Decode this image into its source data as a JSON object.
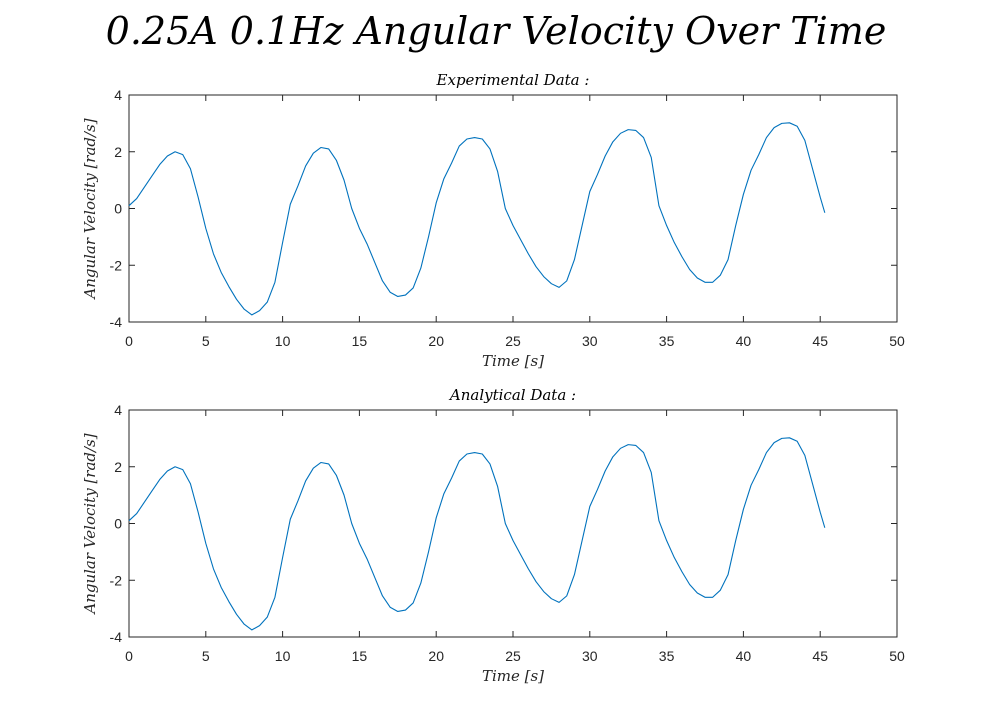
{
  "figure": {
    "title": "0.25A 0.1Hz Angular Velocity Over Time"
  },
  "colors": {
    "line": "#0072BD",
    "axes": "#262626",
    "background": "#ffffff"
  },
  "chart_data": [
    {
      "type": "line",
      "title": "Experimental Data :",
      "xlabel": "Time [s]",
      "ylabel": "Angular Velocity [rad/s]",
      "xlim": [
        0,
        50
      ],
      "ylim": [
        -4,
        4
      ],
      "xticks": [
        0,
        5,
        10,
        15,
        20,
        25,
        30,
        35,
        40,
        45,
        50
      ],
      "yticks": [
        -4,
        -2,
        0,
        2,
        4
      ],
      "grid": false,
      "series": [
        {
          "x": [
            0,
            0.5,
            1,
            1.5,
            2,
            2.5,
            3,
            3.5,
            4,
            4.5,
            5,
            5.5,
            6,
            6.5,
            7,
            7.5,
            8,
            8.5,
            9,
            9.5,
            10,
            10.5,
            11,
            11.5,
            12,
            12.5,
            13,
            13.5,
            14,
            14.5,
            15,
            15.5,
            16,
            16.5,
            17,
            17.5,
            18,
            18.5,
            19,
            19.5,
            20,
            20.5,
            21,
            21.5,
            22,
            22.5,
            23,
            23.5,
            24,
            24.5,
            25,
            25.5,
            26,
            26.5,
            27,
            27.5,
            28,
            28.5,
            29,
            29.5,
            30,
            30.5,
            31,
            31.5,
            32,
            32.5,
            33,
            33.5,
            34,
            34.5,
            35,
            35.5,
            36,
            36.5,
            37,
            37.5,
            38,
            38.5,
            39,
            39.5,
            40,
            40.5,
            41,
            41.5,
            42,
            42.5,
            43,
            43.5,
            44,
            44.5,
            45,
            45.3
          ],
          "y": [
            0.1,
            0.35,
            0.75,
            1.15,
            1.55,
            1.85,
            2.0,
            1.9,
            1.4,
            0.4,
            -0.7,
            -1.6,
            -2.25,
            -2.75,
            -3.2,
            -3.55,
            -3.75,
            -3.6,
            -3.3,
            -2.6,
            -1.2,
            0.15,
            0.8,
            1.5,
            1.95,
            2.15,
            2.1,
            1.7,
            1.0,
            0.0,
            -0.7,
            -1.25,
            -1.9,
            -2.55,
            -2.95,
            -3.1,
            -3.05,
            -2.8,
            -2.1,
            -1.0,
            0.2,
            1.05,
            1.6,
            2.2,
            2.45,
            2.5,
            2.45,
            2.1,
            1.3,
            0.0,
            -0.6,
            -1.1,
            -1.6,
            -2.05,
            -2.4,
            -2.65,
            -2.78,
            -2.55,
            -1.8,
            -0.6,
            0.6,
            1.2,
            1.85,
            2.35,
            2.65,
            2.78,
            2.75,
            2.5,
            1.8,
            0.1,
            -0.6,
            -1.2,
            -1.7,
            -2.15,
            -2.45,
            -2.6,
            -2.6,
            -2.35,
            -1.8,
            -0.6,
            0.5,
            1.35,
            1.9,
            2.5,
            2.85,
            3.0,
            3.02,
            2.9,
            2.4,
            1.4,
            0.4,
            -0.15
          ]
        }
      ]
    },
    {
      "type": "line",
      "title": "Analytical Data :",
      "xlabel": "Time [s]",
      "ylabel": "Angular Velocity [rad/s]",
      "xlim": [
        0,
        50
      ],
      "ylim": [
        -4,
        4
      ],
      "xticks": [
        0,
        5,
        10,
        15,
        20,
        25,
        30,
        35,
        40,
        45,
        50
      ],
      "yticks": [
        -4,
        -2,
        0,
        2,
        4
      ],
      "grid": false,
      "series": [
        {
          "x": [
            0,
            0.5,
            1,
            1.5,
            2,
            2.5,
            3,
            3.5,
            4,
            4.5,
            5,
            5.5,
            6,
            6.5,
            7,
            7.5,
            8,
            8.5,
            9,
            9.5,
            10,
            10.5,
            11,
            11.5,
            12,
            12.5,
            13,
            13.5,
            14,
            14.5,
            15,
            15.5,
            16,
            16.5,
            17,
            17.5,
            18,
            18.5,
            19,
            19.5,
            20,
            20.5,
            21,
            21.5,
            22,
            22.5,
            23,
            23.5,
            24,
            24.5,
            25,
            25.5,
            26,
            26.5,
            27,
            27.5,
            28,
            28.5,
            29,
            29.5,
            30,
            30.5,
            31,
            31.5,
            32,
            32.5,
            33,
            33.5,
            34,
            34.5,
            35,
            35.5,
            36,
            36.5,
            37,
            37.5,
            38,
            38.5,
            39,
            39.5,
            40,
            40.5,
            41,
            41.5,
            42,
            42.5,
            43,
            43.5,
            44,
            44.5,
            45,
            45.3
          ],
          "y": [
            0.1,
            0.35,
            0.75,
            1.15,
            1.55,
            1.85,
            2.0,
            1.9,
            1.4,
            0.4,
            -0.7,
            -1.6,
            -2.25,
            -2.75,
            -3.2,
            -3.55,
            -3.75,
            -3.6,
            -3.3,
            -2.6,
            -1.2,
            0.15,
            0.8,
            1.5,
            1.95,
            2.15,
            2.1,
            1.7,
            1.0,
            0.0,
            -0.7,
            -1.25,
            -1.9,
            -2.55,
            -2.95,
            -3.1,
            -3.05,
            -2.8,
            -2.1,
            -1.0,
            0.2,
            1.05,
            1.6,
            2.2,
            2.45,
            2.5,
            2.45,
            2.1,
            1.3,
            0.0,
            -0.6,
            -1.1,
            -1.6,
            -2.05,
            -2.4,
            -2.65,
            -2.78,
            -2.55,
            -1.8,
            -0.6,
            0.6,
            1.2,
            1.85,
            2.35,
            2.65,
            2.78,
            2.75,
            2.5,
            1.8,
            0.1,
            -0.6,
            -1.2,
            -1.7,
            -2.15,
            -2.45,
            -2.6,
            -2.6,
            -2.35,
            -1.8,
            -0.6,
            0.5,
            1.35,
            1.9,
            2.5,
            2.85,
            3.0,
            3.02,
            2.9,
            2.4,
            1.4,
            0.4,
            -0.15
          ]
        }
      ]
    }
  ]
}
